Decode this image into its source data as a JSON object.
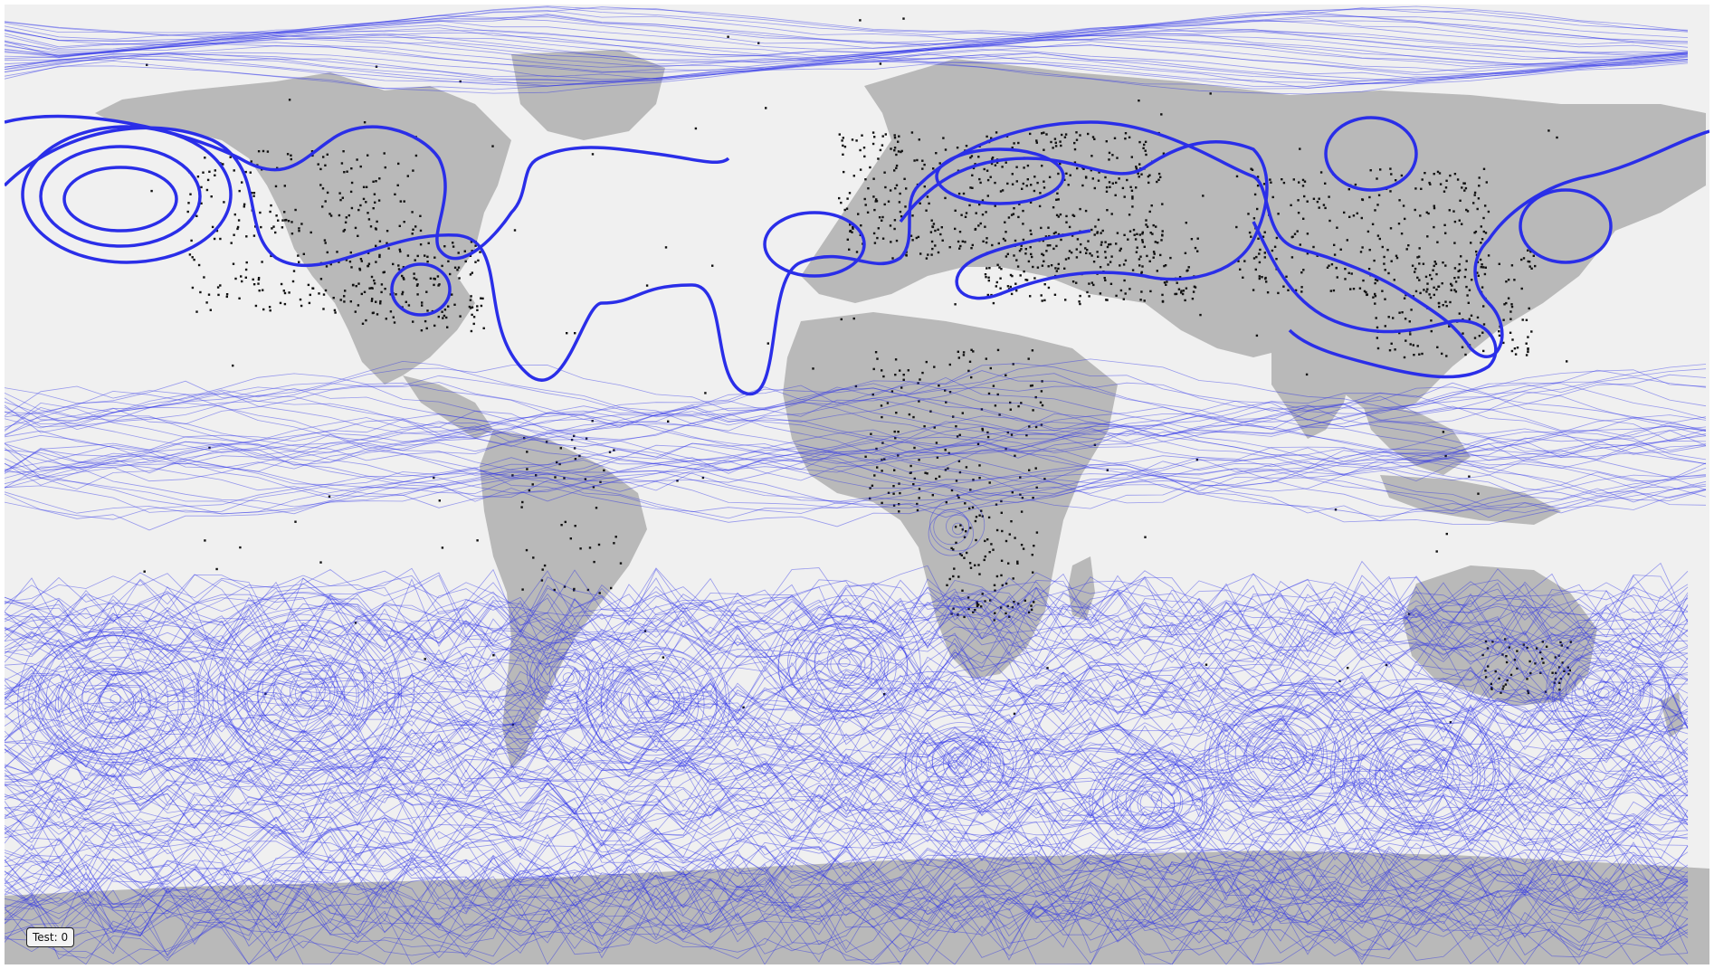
{
  "map": {
    "ocean_color": "#f0f0f0",
    "land_color": "#b9b9b9",
    "contour_color": "#2a2ee8",
    "site_marker_color": "#111111"
  },
  "controls": {
    "test_label": "Test: 0"
  }
}
